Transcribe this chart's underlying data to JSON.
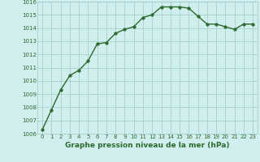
{
  "x": [
    0,
    1,
    2,
    3,
    4,
    5,
    6,
    7,
    8,
    9,
    10,
    11,
    12,
    13,
    14,
    15,
    16,
    17,
    18,
    19,
    20,
    21,
    22,
    23
  ],
  "y": [
    1006.3,
    1007.8,
    1009.3,
    1010.4,
    1010.8,
    1011.5,
    1012.8,
    1012.9,
    1013.6,
    1013.9,
    1014.1,
    1014.8,
    1015.0,
    1015.6,
    1015.6,
    1015.6,
    1015.5,
    1014.9,
    1014.3,
    1014.3,
    1014.1,
    1013.9,
    1014.3,
    1014.3
  ],
  "line_color": "#2d6a2d",
  "marker_color": "#2d6a2d",
  "bg_color": "#d0eeee",
  "grid_color": "#a0c8c8",
  "xlabel": "Graphe pression niveau de la mer (hPa)",
  "ylim": [
    1006,
    1016
  ],
  "xlim_min": -0.5,
  "xlim_max": 23.5,
  "yticks": [
    1006,
    1007,
    1008,
    1009,
    1010,
    1011,
    1012,
    1013,
    1014,
    1015,
    1016
  ],
  "xticks": [
    0,
    1,
    2,
    3,
    4,
    5,
    6,
    7,
    8,
    9,
    10,
    11,
    12,
    13,
    14,
    15,
    16,
    17,
    18,
    19,
    20,
    21,
    22,
    23
  ],
  "xtick_labels": [
    "0",
    "1",
    "2",
    "3",
    "4",
    "5",
    "6",
    "7",
    "8",
    "9",
    "10",
    "11",
    "12",
    "13",
    "14",
    "15",
    "16",
    "17",
    "18",
    "19",
    "20",
    "21",
    "22",
    "23"
  ],
  "tick_fontsize": 5.0,
  "xlabel_fontsize": 6.5,
  "line_width": 1.0,
  "marker_size": 2.5
}
